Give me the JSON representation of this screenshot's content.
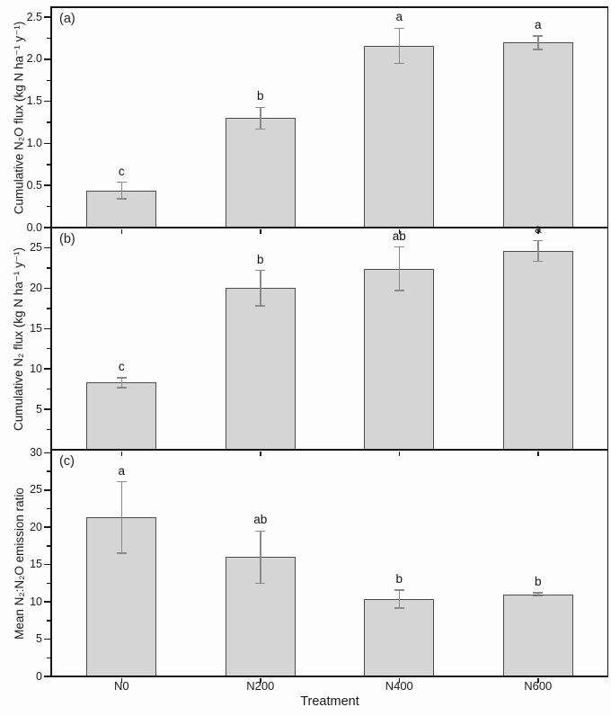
{
  "chart_data": {
    "type": "bar",
    "categories": [
      "N0",
      "N200",
      "N400",
      "N600"
    ],
    "xlabel": "Treatment",
    "grid": false,
    "legend": "none",
    "colors": {
      "bar_fill": "#d5d5d5",
      "bar_border": "#4d4d4d",
      "error_bar": "#8a8a8a",
      "axis": "#161616",
      "text": "#1a1a1a"
    },
    "panels": [
      {
        "tag": "(a)",
        "ylabel": "Cumulative N₂O flux (kg N ha⁻¹ y⁻¹)",
        "ylim": [
          0,
          2.62
        ],
        "ytick_values": [
          0,
          0.5,
          1,
          1.5,
          2,
          2.5
        ],
        "ytick_labels": [
          "0.0",
          "0.5",
          "1.0",
          "1.5",
          "2.0",
          "2.5"
        ],
        "minor_ticks": [
          0.25,
          0.75,
          1.25,
          1.75,
          2.25
        ],
        "values": [
          0.44,
          1.3,
          2.16,
          2.2
        ],
        "errors": [
          0.1,
          0.13,
          0.21,
          0.08
        ],
        "sig_letters": [
          "c",
          "b",
          "a",
          "a"
        ]
      },
      {
        "tag": "(b)",
        "ylabel": "Cumulative N₂ flux (kg N ha⁻¹ y⁻¹)",
        "ylim": [
          0,
          27.5
        ],
        "ytick_values": [
          5,
          10,
          15,
          20,
          25
        ],
        "ytick_labels": [
          "5",
          "10",
          "15",
          "20",
          "25"
        ],
        "minor_ticks": [
          2.5,
          7.5,
          12.5,
          17.5,
          22.5
        ],
        "values": [
          8.3,
          20.0,
          22.4,
          24.6
        ],
        "errors": [
          0.6,
          2.2,
          2.7,
          1.3
        ],
        "sig_letters": [
          "c",
          "b",
          "ab",
          "a"
        ]
      },
      {
        "tag": "(c)",
        "ylabel": "Mean N₂:N₂O emission ratio",
        "ylim": [
          0,
          30.4
        ],
        "ytick_values": [
          0,
          5,
          10,
          15,
          20,
          25,
          30
        ],
        "ytick_labels": [
          "0",
          "5",
          "10",
          "15",
          "20",
          "25",
          "30"
        ],
        "minor_ticks": [
          2.5,
          7.5,
          12.5,
          17.5,
          22.5,
          27.5
        ],
        "values": [
          21.3,
          16.0,
          10.4,
          11.0
        ],
        "errors": [
          4.8,
          3.5,
          1.2,
          0.2
        ],
        "sig_letters": [
          "a",
          "ab",
          "b",
          "b"
        ]
      }
    ]
  }
}
